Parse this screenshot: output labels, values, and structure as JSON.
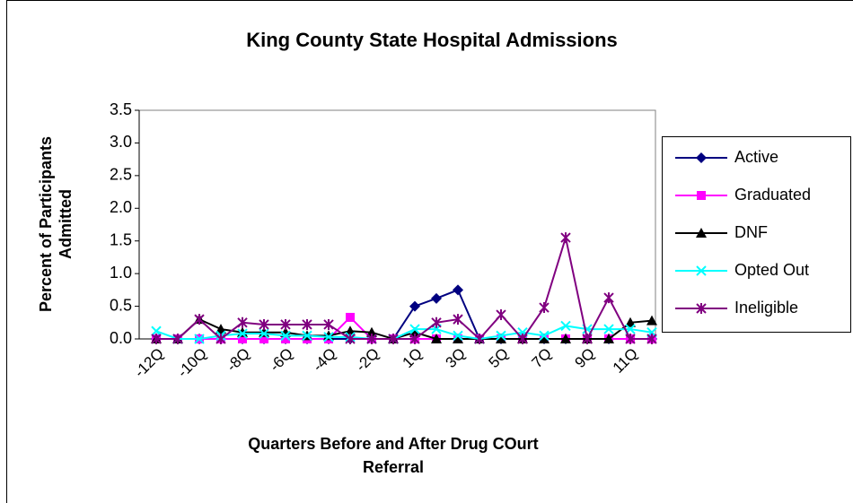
{
  "chart_data": {
    "type": "line",
    "title": "King County State Hospital Admissions",
    "ylabel": [
      "Percent of Participants",
      "Admitted"
    ],
    "xlabel": [
      "Quarters Before and After Drug COurt",
      "Referral"
    ],
    "categories": [
      "-12Q",
      null,
      "-10Q",
      null,
      "-8Q",
      null,
      "-6Q",
      null,
      "-4Q",
      null,
      "-2Q",
      null,
      "1Q",
      null,
      "3Q",
      null,
      "5Q",
      null,
      "7Q",
      null,
      "9Q",
      null,
      "11Q",
      null
    ],
    "ylim": [
      0,
      3.5
    ],
    "yticks": [
      {
        "value": 0,
        "label": "0.0"
      },
      {
        "value": 0.5,
        "label": "0.5"
      },
      {
        "value": 1,
        "label": "1.0"
      },
      {
        "value": 1.5,
        "label": "1.5"
      },
      {
        "value": 2,
        "label": "2.0"
      },
      {
        "value": 2.5,
        "label": "2.5"
      },
      {
        "value": 3,
        "label": "3.0"
      },
      {
        "value": 3.5,
        "label": "3.5"
      }
    ],
    "grid": false,
    "legend": "right",
    "series": [
      {
        "name": "Active",
        "color": "#000080",
        "marker": "diamond",
        "values": [
          0,
          0,
          0,
          0,
          0,
          0,
          0,
          0,
          0,
          0,
          0,
          0,
          0.5,
          0.62,
          0.75,
          0,
          0,
          0,
          0,
          0,
          0,
          0,
          0,
          0
        ]
      },
      {
        "name": "Graduated",
        "color": "#ff00ff",
        "marker": "square",
        "values": [
          0,
          0,
          0,
          0,
          0,
          0,
          0,
          0,
          0,
          0.33,
          0,
          0,
          0,
          0,
          0,
          0,
          0,
          0,
          0,
          0,
          0,
          0,
          0,
          0
        ]
      },
      {
        "name": "DNF",
        "color": "#000000",
        "marker": "triangle",
        "values": [
          0,
          0,
          0.3,
          0.15,
          0.1,
          0.1,
          0.1,
          0.05,
          0.05,
          0.12,
          0.1,
          0,
          0.1,
          0,
          0,
          0,
          0,
          0,
          0,
          0,
          0,
          0,
          0.25,
          0.28
        ]
      },
      {
        "name": "Opted Out",
        "color": "#00ffff",
        "marker": "x",
        "values": [
          0.12,
          0,
          0,
          0.05,
          0.08,
          0.08,
          0.05,
          0.05,
          0.03,
          0.03,
          0,
          0,
          0.15,
          0.15,
          0.05,
          0,
          0.05,
          0.1,
          0.05,
          0.2,
          0.15,
          0.15,
          0.15,
          0.1
        ]
      },
      {
        "name": "Ineligible",
        "color": "#800080",
        "marker": "star",
        "values": [
          0,
          0,
          0.3,
          0,
          0.25,
          0.22,
          0.22,
          0.22,
          0.22,
          0,
          0,
          0,
          0,
          0.25,
          0.3,
          0,
          0.37,
          0,
          0.48,
          1.55,
          0,
          0.63,
          0,
          0
        ]
      }
    ]
  }
}
